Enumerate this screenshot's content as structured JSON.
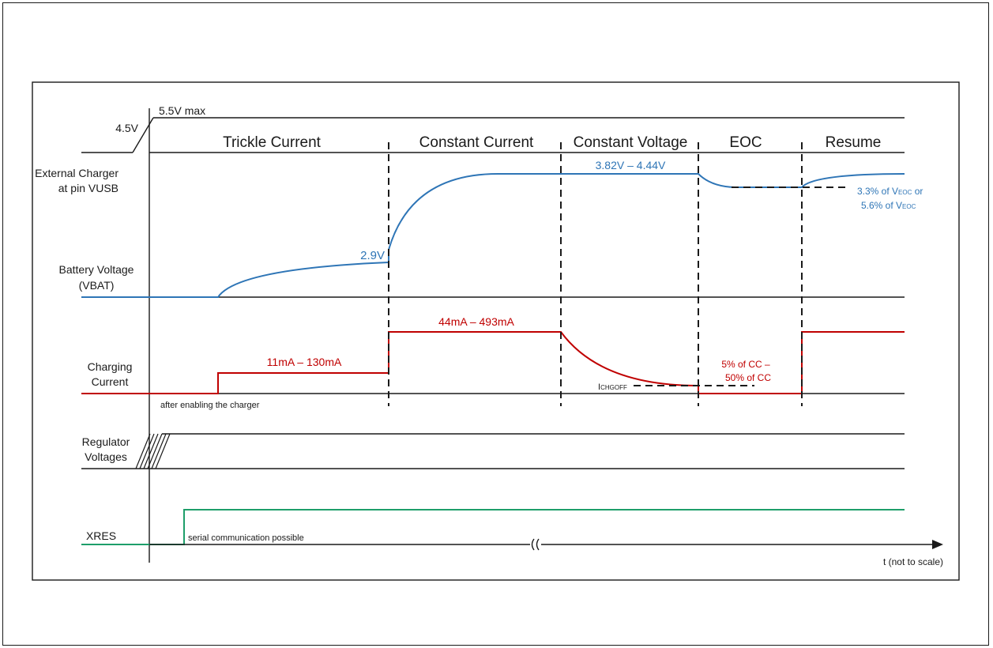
{
  "phases": {
    "trickle": "Trickle Current",
    "cc": "Constant Current",
    "cv": "Constant Voltage",
    "eoc": "EOC",
    "resume": "Resume"
  },
  "signals": {
    "ext_charger_1": "External Charger",
    "ext_charger_2": "at pin VUSB",
    "vbat_1": "Battery Voltage",
    "vbat_2": "(VBAT)",
    "charging_1": "Charging",
    "charging_2": "Current",
    "regulator_1": "Regulator",
    "regulator_2": "Voltages",
    "xres": "XRES"
  },
  "annotations": {
    "v_max": "5.5V max",
    "v_45": "4.5V",
    "v_29": "2.9V",
    "v_cv_range": "3.82V – 4.44V",
    "recharge_1_pre": "3.3% of V",
    "recharge_1_sub": "EOC",
    "recharge_1_post": " or",
    "recharge_2_pre": "5.6% of V",
    "recharge_2_sub": "EOC",
    "i_trickle": "11mA – 130mA",
    "i_cc": "44mA – 493mA",
    "i_term_1": "5% of CC –",
    "i_term_2": "50% of CC",
    "ichgoff_main": "I",
    "ichgoff_sub": "CHGOFF",
    "after_enable": "after enabling the charger",
    "serial": "serial communication possible",
    "time_axis": "t (not to scale)"
  },
  "colors": {
    "voltage": "#2e75b6",
    "current": "#c00000",
    "xres": "#1e9e6a",
    "line": "#1a1a1a",
    "dashed": "#1a1a1a"
  }
}
